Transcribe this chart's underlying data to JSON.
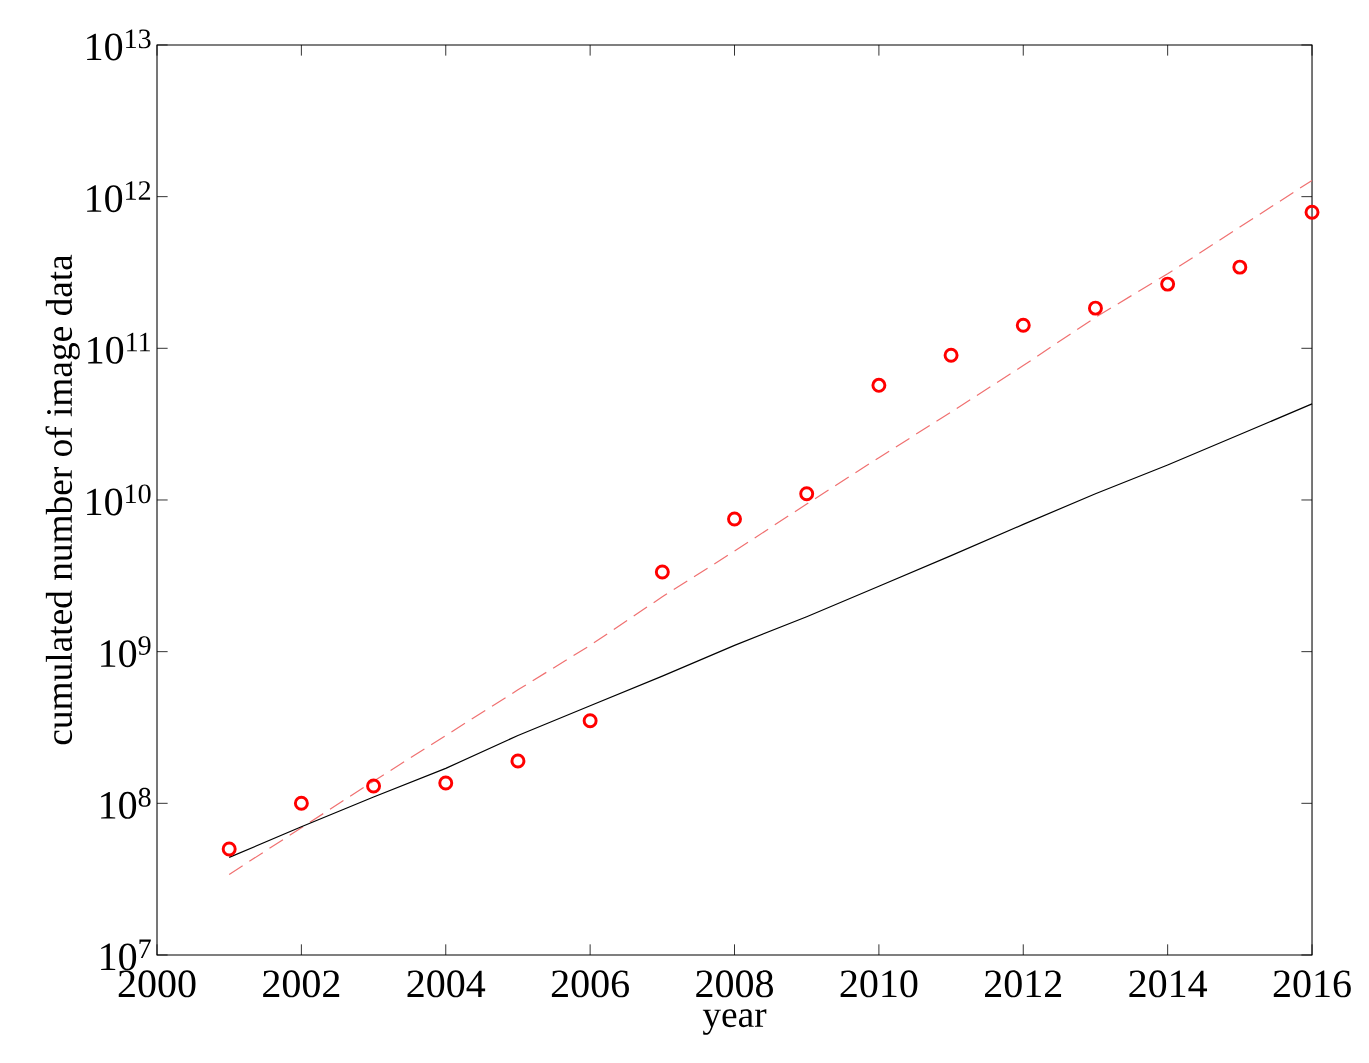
{
  "chart_data": {
    "type": "scatter",
    "xlabel": "year",
    "ylabel": "cumulated number of image data",
    "log": "y",
    "grid": false,
    "xlim": [
      2000,
      2016
    ],
    "ylim": [
      10000000.0,
      10000000000000.0
    ],
    "xticks": [
      2000,
      2002,
      2004,
      2006,
      2008,
      2010,
      2012,
      2014,
      2016
    ],
    "yticks": [
      {
        "value": 10000000.0,
        "label": "10$^{7}$"
      },
      {
        "value": 100000000.0,
        "label": "10$^{8}$"
      },
      {
        "value": 1000000000.0,
        "label": "10$^{9}$"
      },
      {
        "value": 10000000000.0,
        "label": "10$^{10}$"
      },
      {
        "value": 100000000000.0,
        "label": "10$^{11}$"
      },
      {
        "value": 1000000000000.0,
        "label": "10$^{12}$"
      },
      {
        "value": 10000000000000.0,
        "label": "10$^{13}$"
      }
    ],
    "x": [
      2001,
      2002,
      2003,
      2004,
      2005,
      2006,
      2007,
      2008,
      2009,
      2010,
      2011,
      2012,
      2013,
      2014,
      2015,
      2016
    ],
    "series": [
      {
        "marker": "circle",
        "color": "#ff0000",
        "values": [
          50000000.0,
          100000000.0,
          130000000.0,
          136000000.0,
          190000000.0,
          350000000.0,
          3350000000.0,
          7500000000.0,
          11000000000.0,
          57000000000.0,
          90000000000.0,
          142000000000.0,
          184000000000.0,
          265000000000.0,
          343000000000.0,
          790000000000.0
        ]
      },
      {
        "type": "line",
        "line_style": "dashed",
        "color": "#f07070",
        "values": [
          34000000.0,
          69000000.0,
          140000000.0,
          280000000.0,
          560000000.0,
          1100000000.0,
          2300000000.0,
          4600000000.0,
          9400000000.0,
          19000000000.0,
          38000000000.0,
          77000000000.0,
          160000000000.0,
          310000000000.0,
          630000000000.0,
          1280000000000.0
        ]
      },
      {
        "type": "line",
        "line_style": "solid",
        "color": "#000000",
        "values": [
          44000000.0,
          70000000.0,
          110000000.0,
          170000000.0,
          280000000.0,
          440000000.0,
          690000000.0,
          1100000000.0,
          1700000000.0,
          2700000000.0,
          4300000000.0,
          6900000000.0,
          11000000000.0,
          17000000000.0,
          27000000000.0,
          43000000000.0
        ]
      }
    ]
  }
}
